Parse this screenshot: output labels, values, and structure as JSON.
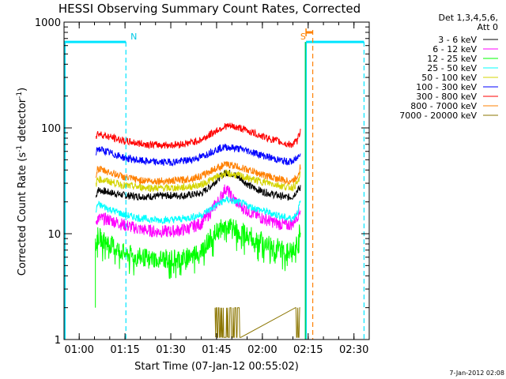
{
  "chart_data": {
    "type": "line",
    "title": "HESSI Observing Summary Count Rates, Corrected",
    "xlabel": "Start Time (07-Jan-12 00:55:02)",
    "ylabel": "Corrected Count Rate (s",
    "ylabel_sup": "-1",
    "ylabel_mid": " detector",
    "ylabel_sup2": "-1",
    "ylabel_end": ")",
    "y_scale": "log",
    "ylim": [
      1,
      1000
    ],
    "xlim_minutes": [
      55.03,
      155
    ],
    "x_ticks": [
      {
        "label": "01:00",
        "min": 60
      },
      {
        "label": "01:15",
        "min": 75
      },
      {
        "label": "01:30",
        "min": 90
      },
      {
        "label": "01:45",
        "min": 105
      },
      {
        "label": "02:00",
        "min": 120
      },
      {
        "label": "02:15",
        "min": 135
      },
      {
        "label": "02:30",
        "min": 150
      }
    ],
    "y_ticks": [
      {
        "label": "1",
        "value": 1
      },
      {
        "label": "10",
        "value": 10
      },
      {
        "label": "100",
        "value": 100
      },
      {
        "label": "1000",
        "value": 1000
      }
    ],
    "legend_header": [
      "Det 1,3,4,5,6,",
      "Att 0"
    ],
    "legend_placement": "top-right-outside",
    "series": [
      {
        "name": "3 - 6 keV",
        "color": "#000000",
        "x": [
          65.5,
          66,
          70,
          75,
          80,
          85,
          90,
          95,
          100,
          103,
          106,
          108,
          110,
          113,
          116,
          120,
          125,
          128,
          130,
          131.5,
          132.5
        ],
        "y": [
          22,
          26,
          24.5,
          23,
          22.5,
          22.5,
          23,
          23,
          24,
          28,
          34,
          38,
          37,
          33,
          28,
          25,
          23,
          22,
          22.5,
          26,
          27
        ]
      },
      {
        "name": "6 - 12 keV",
        "color": "#ff00ff",
        "x": [
          65.5,
          66,
          70,
          75,
          80,
          85,
          90,
          95,
          100,
          103,
          106,
          108,
          110,
          113,
          116,
          120,
          125,
          128,
          130,
          131.5,
          132.5
        ],
        "y": [
          13,
          14,
          13.5,
          12,
          11,
          10.5,
          10.5,
          11,
          12.5,
          16,
          21,
          27,
          22,
          18,
          16,
          14,
          12.5,
          12,
          12.5,
          15,
          17
        ]
      },
      {
        "name": "12 - 25 keV",
        "color": "#00ff00",
        "x": [
          65.5,
          66,
          70,
          75,
          80,
          85,
          90,
          95,
          100,
          103,
          106,
          108,
          110,
          113,
          116,
          120,
          125,
          128,
          130,
          131.5,
          132.5
        ],
        "y": [
          7.5,
          9.5,
          8,
          6.5,
          6,
          5.8,
          5.8,
          6,
          7,
          9,
          11,
          12,
          11.5,
          10.5,
          9.5,
          8.5,
          7.5,
          6.8,
          6.8,
          8,
          12
        ]
      },
      {
        "name": "25 - 50 keV",
        "color": "#00ffff",
        "x": [
          65.5,
          66,
          70,
          75,
          80,
          85,
          90,
          95,
          100,
          103,
          106,
          108,
          110,
          113,
          116,
          120,
          125,
          128,
          130,
          131.5,
          132.5
        ],
        "y": [
          16,
          19,
          17,
          15,
          14,
          13.5,
          13.5,
          14,
          15,
          17,
          19.5,
          21,
          20.5,
          19.5,
          18,
          16.5,
          15,
          14,
          14,
          16,
          20
        ]
      },
      {
        "name": "50 - 100 keV",
        "color": "#d4d400",
        "x": [
          65.5,
          66,
          70,
          75,
          80,
          85,
          90,
          95,
          100,
          103,
          106,
          108,
          110,
          113,
          116,
          120,
          125,
          128,
          130,
          131.5,
          132.5
        ],
        "y": [
          29,
          33,
          31,
          28.5,
          27.5,
          27,
          27,
          27.5,
          29,
          32,
          35.5,
          37,
          36.5,
          35,
          33,
          31,
          29,
          27.5,
          27.5,
          30,
          36
        ]
      },
      {
        "name": "100 - 300 keV",
        "color": "#0000ff",
        "x": [
          65.5,
          66,
          70,
          75,
          80,
          85,
          90,
          95,
          100,
          103,
          106,
          108,
          110,
          113,
          116,
          120,
          125,
          128,
          130,
          131.5,
          132.5
        ],
        "y": [
          58,
          64,
          58,
          52,
          49,
          47.5,
          47.5,
          49,
          53,
          59,
          64,
          66,
          65,
          63,
          60,
          55,
          50,
          48,
          48,
          52,
          60
        ]
      },
      {
        "name": "300 - 800 keV",
        "color": "#ff0000",
        "x": [
          65.5,
          66,
          70,
          75,
          80,
          85,
          90,
          95,
          100,
          103,
          106,
          108,
          110,
          113,
          116,
          120,
          125,
          128,
          130,
          131.5,
          132.5
        ],
        "y": [
          83,
          89,
          82,
          75,
          71,
          69,
          69,
          71,
          77,
          87,
          98,
          104,
          103,
          99,
          92,
          83,
          75,
          70,
          70,
          76,
          95
        ]
      },
      {
        "name": "800 - 7000 keV",
        "color": "#ff8000",
        "x": [
          65.5,
          66,
          70,
          75,
          80,
          85,
          90,
          95,
          100,
          103,
          106,
          108,
          110,
          113,
          116,
          120,
          125,
          128,
          130,
          131.5,
          132.5
        ],
        "y": [
          36,
          41,
          38,
          34,
          32,
          31.5,
          31.5,
          32.5,
          35,
          39,
          43,
          45,
          44.5,
          42,
          39.5,
          36,
          33,
          31.5,
          31.5,
          35,
          44
        ]
      },
      {
        "name": "7000 - 20000 keV",
        "color": "#8b7500",
        "x": [
          105,
          106.5,
          108,
          109.5,
          111,
          112.5,
          131,
          132
        ],
        "y": [
          2,
          2,
          2,
          2,
          2,
          2,
          2,
          2
        ]
      }
    ],
    "annotations": [
      {
        "label": "N",
        "color": "#00c8e6",
        "x_min": 75
      },
      {
        "label": "S",
        "color": "#ff8000",
        "x_min": 134.5
      }
    ],
    "night_markers_minutes": [
      55.3,
      75.3,
      134.3,
      153.3
    ],
    "saa_marker_minutes": 136.5,
    "attenuator_level": 650,
    "timestamp": "7-Jan-2012 02:08"
  }
}
